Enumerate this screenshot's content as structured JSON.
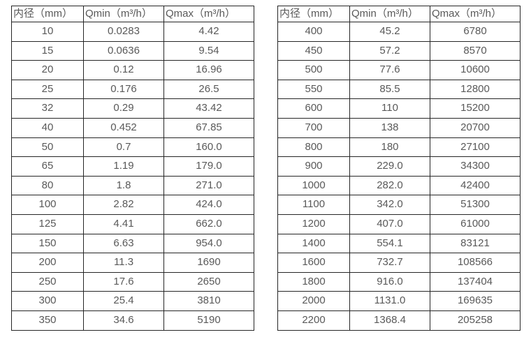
{
  "colors": {
    "background": "#ffffff",
    "border": "#262626",
    "text": "#595959"
  },
  "tables": [
    {
      "name": "flow-spec-small-diameters",
      "headers": [
        "内径（mm）",
        "Qmin（m³/h）",
        "Qmax（m³/h）"
      ],
      "rows": [
        [
          "10",
          "0.0283",
          "4.42"
        ],
        [
          "15",
          "0.0636",
          "9.54"
        ],
        [
          "20",
          "0.12",
          "16.96"
        ],
        [
          "25",
          "0.176",
          "26.5"
        ],
        [
          "32",
          "0.29",
          "43.42"
        ],
        [
          "40",
          "0.452",
          "67.85"
        ],
        [
          "50",
          "0.7",
          "160.0"
        ],
        [
          "65",
          "1.19",
          "179.0"
        ],
        [
          "80",
          "1.8",
          "271.0"
        ],
        [
          "100",
          "2.82",
          "424.0"
        ],
        [
          "125",
          "4.41",
          "662.0"
        ],
        [
          "150",
          "6.63",
          "954.0"
        ],
        [
          "200",
          "11.3",
          "1690"
        ],
        [
          "250",
          "17.6",
          "2650"
        ],
        [
          "300",
          "25.4",
          "3810"
        ],
        [
          "350",
          "34.6",
          "5190"
        ]
      ]
    },
    {
      "name": "flow-spec-large-diameters",
      "headers": [
        "内径（mm）",
        "Qmin（m³/h）",
        "Qmax（m³/h）"
      ],
      "rows": [
        [
          "400",
          "45.2",
          "6780"
        ],
        [
          "450",
          "57.2",
          "8570"
        ],
        [
          "500",
          "77.6",
          "10600"
        ],
        [
          "550",
          "85.5",
          "12800"
        ],
        [
          "600",
          "110",
          "15200"
        ],
        [
          "700",
          "138",
          "20700"
        ],
        [
          "800",
          "180",
          "27100"
        ],
        [
          "900",
          "229.0",
          "34300"
        ],
        [
          "1000",
          "282.0",
          "42400"
        ],
        [
          "1100",
          "342.0",
          "51300"
        ],
        [
          "1200",
          "407.0",
          "61000"
        ],
        [
          "1400",
          "554.1",
          "83121"
        ],
        [
          "1600",
          "732.7",
          "108566"
        ],
        [
          "1800",
          "916.0",
          "137404"
        ],
        [
          "2000",
          "1131.0",
          "169635"
        ],
        [
          "2200",
          "1368.4",
          "205258"
        ]
      ]
    }
  ]
}
